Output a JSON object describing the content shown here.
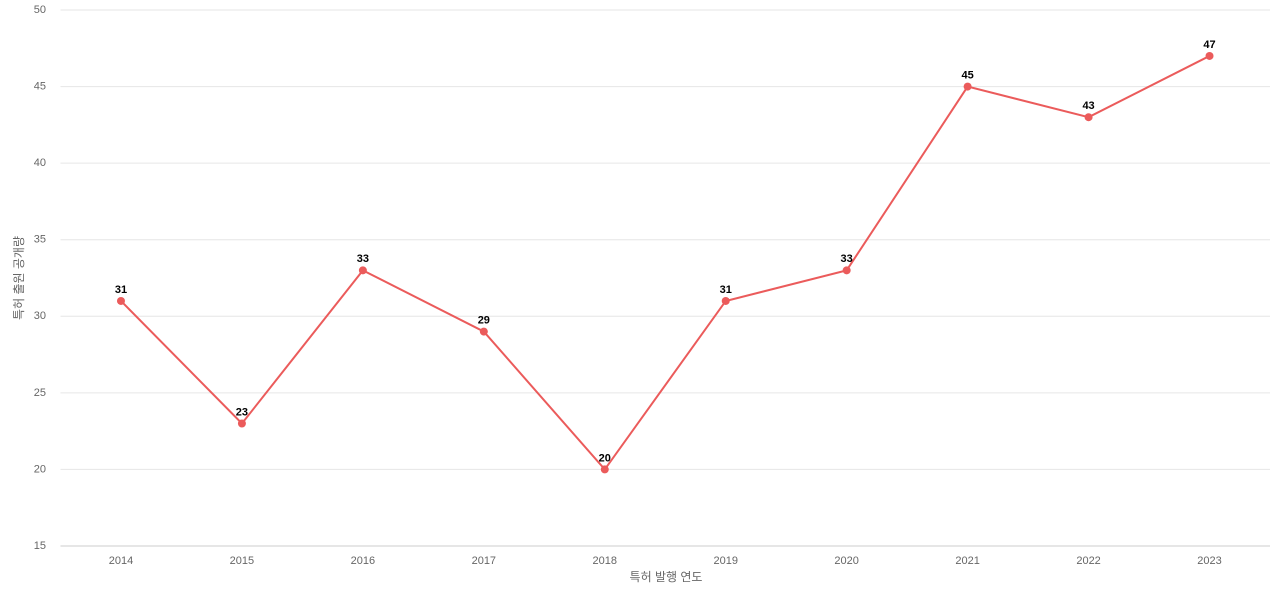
{
  "chart_data": {
    "type": "line",
    "x_label": "특허 발행 연도",
    "y_label": "특허 출원 공개량",
    "categories": [
      "2014",
      "2015",
      "2016",
      "2017",
      "2018",
      "2019",
      "2020",
      "2021",
      "2022",
      "2023"
    ],
    "series": [
      {
        "color": "#eb5b5b",
        "values": [
          31,
          23,
          33,
          29,
          20,
          31,
          33,
          45,
          43,
          47
        ]
      }
    ],
    "ylim": [
      15,
      50
    ],
    "yticks": [
      15,
      20,
      25,
      30,
      35,
      40,
      45,
      50
    ],
    "grid": true
  }
}
